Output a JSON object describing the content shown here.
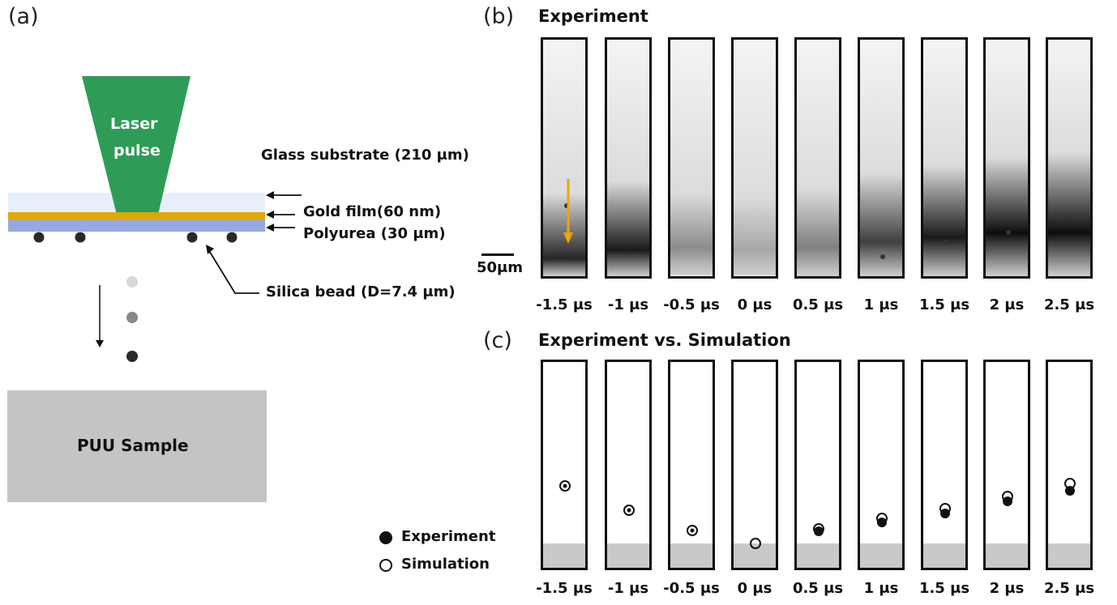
{
  "panels": {
    "a": "(a)",
    "b": "(b)",
    "c": "(c)"
  },
  "panel_a": {
    "laser_line1": "Laser",
    "laser_line2": "pulse",
    "glass": "Glass substrate (210 μm)",
    "gold": "Gold film(60 nm)",
    "polyurea": "Polyurea (30 μm)",
    "silica": "Silica bead (D=7.4 μm)",
    "sample": "PUU Sample"
  },
  "panel_b": {
    "title": "Experiment",
    "scale_bar": "50μm",
    "times": [
      "-1.5 μs",
      "-1 μs",
      "-0.5 μs",
      "0 μs",
      "0.5 μs",
      "1 μs",
      "1.5 μs",
      "2 μs",
      "2.5 μs"
    ]
  },
  "panel_c": {
    "title": "Experiment vs. Simulation",
    "legend_experiment": "Experiment",
    "legend_simulation": "Simulation",
    "times": [
      "-1.5 μs",
      "-1 μs",
      "-0.5 μs",
      "0 μs",
      "0.5 μs",
      "1 μs",
      "1.5 μs",
      "2 μs",
      "2.5 μs"
    ]
  },
  "colors": {
    "laser": "#2e9b57",
    "glass": "#e8eefb",
    "gold": "#e0a800",
    "polyurea": "#95a9dc",
    "sample": "#c4c4c4",
    "arrow": "#f0a500"
  }
}
